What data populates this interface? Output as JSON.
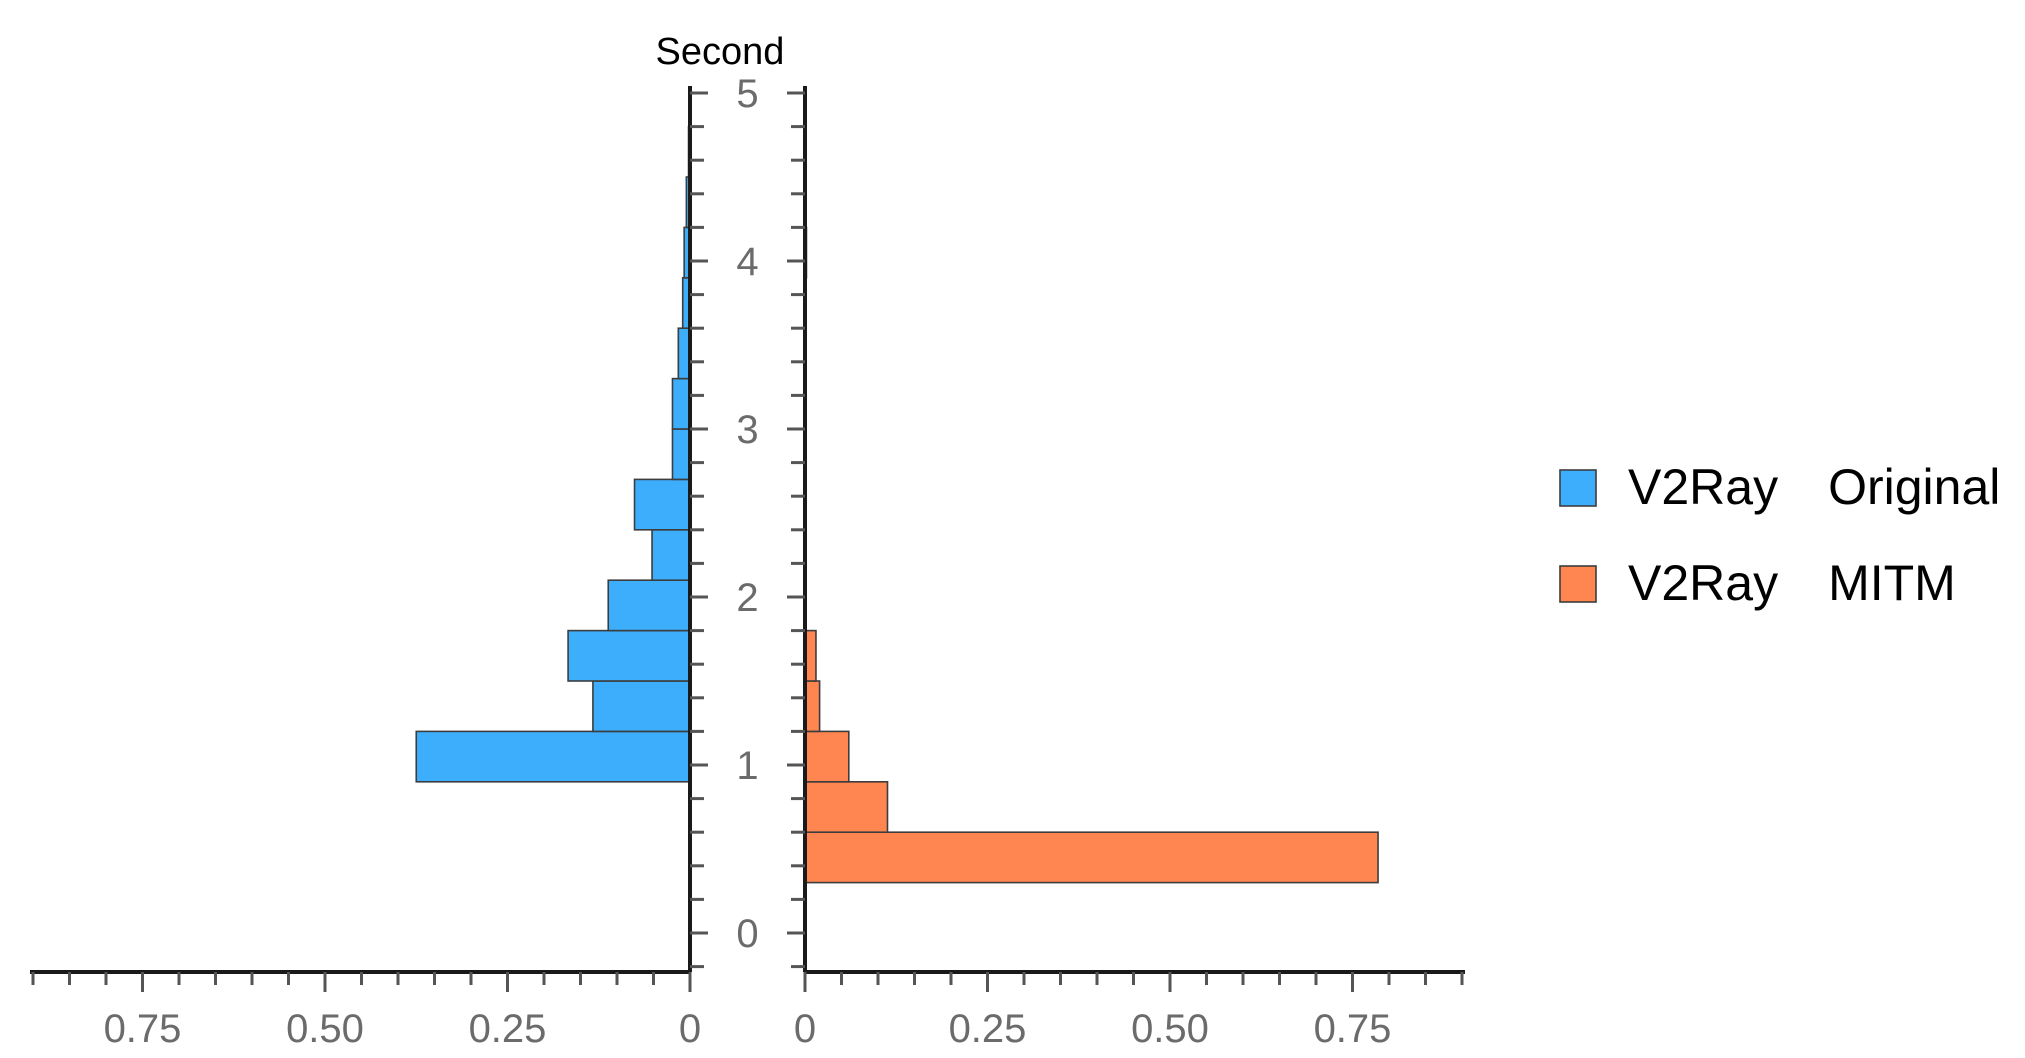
{
  "chart_data": {
    "type": "bar",
    "orientation": "horizontal-back-to-back",
    "y_axis_title": "Second",
    "ylim": [
      -0.2,
      5.0
    ],
    "y_ticks": [
      "0",
      "1",
      "2",
      "3",
      "4",
      "5"
    ],
    "y_tick_values": [
      0,
      1,
      2,
      3,
      4,
      5
    ],
    "bin_width": 0.3,
    "x_ticks_left": [
      "0.75",
      "0.50",
      "0.25",
      "0"
    ],
    "x_ticks_right": [
      "0",
      "0.25",
      "0.50",
      "0.75"
    ],
    "x_tick_values_left": [
      0.75,
      0.5,
      0.25,
      0
    ],
    "x_tick_values_right": [
      0,
      0.25,
      0.5,
      0.75
    ],
    "xlim": [
      0,
      0.9
    ],
    "series": [
      {
        "name": "V2Ray Original",
        "side": "left",
        "color": "#3daefc",
        "bins": [
          {
            "y0": 0.9,
            "y1": 1.2,
            "value": 0.375
          },
          {
            "y0": 1.2,
            "y1": 1.5,
            "value": 0.133
          },
          {
            "y0": 1.5,
            "y1": 1.8,
            "value": 0.167
          },
          {
            "y0": 1.8,
            "y1": 2.1,
            "value": 0.112
          },
          {
            "y0": 2.1,
            "y1": 2.4,
            "value": 0.052
          },
          {
            "y0": 2.4,
            "y1": 2.7,
            "value": 0.076
          },
          {
            "y0": 2.7,
            "y1": 3.0,
            "value": 0.024
          },
          {
            "y0": 3.0,
            "y1": 3.3,
            "value": 0.024
          },
          {
            "y0": 3.3,
            "y1": 3.6,
            "value": 0.016
          },
          {
            "y0": 3.6,
            "y1": 3.9,
            "value": 0.01
          },
          {
            "y0": 3.9,
            "y1": 4.2,
            "value": 0.008
          },
          {
            "y0": 4.2,
            "y1": 4.5,
            "value": 0.005
          },
          {
            "y0": 4.5,
            "y1": 4.8,
            "value": 0.002
          }
        ]
      },
      {
        "name": "V2Ray MITM",
        "side": "right",
        "color": "#ff8650",
        "bins": [
          {
            "y0": 0.3,
            "y1": 0.6,
            "value": 0.785
          },
          {
            "y0": 0.6,
            "y1": 0.9,
            "value": 0.113
          },
          {
            "y0": 0.9,
            "y1": 1.2,
            "value": 0.06
          },
          {
            "y0": 1.2,
            "y1": 1.5,
            "value": 0.02
          },
          {
            "y0": 1.5,
            "y1": 1.8,
            "value": 0.015
          },
          {
            "y0": 3.9,
            "y1": 4.2,
            "value": 0.002
          }
        ]
      }
    ],
    "legend_position": "right",
    "grid": false
  }
}
